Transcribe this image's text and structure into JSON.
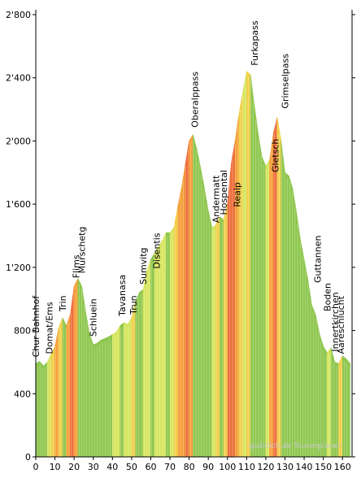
{
  "chart_data": {
    "type": "area",
    "title": "",
    "xlabel": "",
    "ylabel": "",
    "xlim": [
      0,
      165
    ],
    "ylim": [
      0,
      2800
    ],
    "x_ticks": [
      0,
      10,
      20,
      30,
      40,
      50,
      60,
      70,
      80,
      90,
      100,
      110,
      120,
      130,
      140,
      150,
      160
    ],
    "x_tick_labels": [
      "0",
      "10",
      "20",
      "30",
      "40",
      "50",
      "60",
      "70",
      "80",
      "90",
      "100",
      "110",
      "120",
      "130",
      "140",
      "150",
      "160"
    ],
    "y_ticks": [
      0,
      400,
      800,
      1200,
      1600,
      2000,
      2400,
      2800
    ],
    "y_tick_labels": [
      "0",
      "400",
      "800",
      "1'200",
      "1'600",
      "2'000",
      "2'400",
      "2'800"
    ],
    "grid": false,
    "credit": "quäldich.de Tourenplaner",
    "colors": {
      "flat": "#8fc74f",
      "mild": "#d6e660",
      "moderate": "#f1d04a",
      "steep": "#f5a03a",
      "very_steep": "#ee6e3c",
      "stripe": "#ffffff",
      "axis": "#000000"
    },
    "profile": {
      "x": [
        0,
        2,
        4,
        6,
        8,
        10,
        12,
        14,
        16,
        18,
        20,
        22,
        24,
        26,
        28,
        30,
        32,
        34,
        36,
        38,
        40,
        42,
        44,
        46,
        48,
        50,
        52,
        54,
        56,
        58,
        60,
        62,
        64,
        66,
        68,
        70,
        72,
        74,
        76,
        78,
        80,
        82,
        84,
        86,
        88,
        90,
        92,
        94,
        96,
        98,
        100,
        102,
        104,
        106,
        108,
        110,
        112,
        114,
        116,
        118,
        120,
        122,
        124,
        126,
        128,
        130,
        132,
        134,
        136,
        138,
        140,
        142,
        144,
        146,
        148,
        150,
        152,
        154,
        156,
        158,
        160,
        162,
        164
      ],
      "y": [
        590,
        605,
        575,
        600,
        650,
        700,
        820,
        880,
        830,
        900,
        1080,
        1130,
        1080,
        920,
        780,
        710,
        720,
        740,
        750,
        760,
        775,
        790,
        830,
        850,
        840,
        880,
        980,
        1040,
        1060,
        1180,
        1250,
        1290,
        1330,
        1370,
        1420,
        1420,
        1450,
        1580,
        1700,
        1850,
        2000,
        2040,
        1950,
        1830,
        1700,
        1560,
        1450,
        1470,
        1520,
        1500,
        1600,
        1860,
        2000,
        2170,
        2310,
        2440,
        2420,
        2230,
        2050,
        1900,
        1840,
        1880,
        2050,
        2150,
        2000,
        1800,
        1780,
        1700,
        1550,
        1380,
        1250,
        1120,
        960,
        900,
        780,
        700,
        660,
        690,
        600,
        590,
        640,
        620,
        590
      ],
      "grade_class": [
        "flat",
        "flat",
        "flat",
        "mild",
        "moderate",
        "steep",
        "moderate",
        "flat",
        "steep",
        "very_steep",
        "steep",
        "flat",
        "flat",
        "flat",
        "flat",
        "flat",
        "flat",
        "flat",
        "flat",
        "flat",
        "mild",
        "mild",
        "flat",
        "mild",
        "mild",
        "moderate",
        "flat",
        "flat",
        "mild",
        "mild",
        "flat",
        "mild",
        "mild",
        "mild",
        "flat",
        "mild",
        "moderate",
        "steep",
        "steep",
        "very_steep",
        "steep",
        "flat",
        "flat",
        "flat",
        "flat",
        "flat",
        "mild",
        "moderate",
        "flat",
        "moderate",
        "very_steep",
        "very_steep",
        "steep",
        "moderate",
        "mild",
        "moderate",
        "flat",
        "flat",
        "flat",
        "flat",
        "mild",
        "steep",
        "very_steep",
        "moderate",
        "flat",
        "flat",
        "flat",
        "flat",
        "flat",
        "flat",
        "flat",
        "flat",
        "flat",
        "flat",
        "flat",
        "flat",
        "mild",
        "flat",
        "flat",
        "moderate",
        "flat",
        "flat"
      ]
    },
    "annotations": [
      {
        "label": "Chur Bahnhof",
        "x": 0,
        "y": 590
      },
      {
        "label": "Domat/Ems",
        "x": 7,
        "y": 610
      },
      {
        "label": "Trin",
        "x": 14,
        "y": 880
      },
      {
        "label": "Flims",
        "x": 21,
        "y": 1090
      },
      {
        "label": "Murschetg",
        "x": 24,
        "y": 1120
      },
      {
        "label": "Schluein",
        "x": 30,
        "y": 720
      },
      {
        "label": "Tavanasa",
        "x": 45,
        "y": 850
      },
      {
        "label": "Trun",
        "x": 51,
        "y": 860
      },
      {
        "label": "Sumvitg",
        "x": 56,
        "y": 1050
      },
      {
        "label": "Disentis",
        "x": 63,
        "y": 1150
      },
      {
        "label": "Oberalppass",
        "x": 83,
        "y": 2044
      },
      {
        "label": "Andermatt",
        "x": 94,
        "y": 1440
      },
      {
        "label": "Hospental",
        "x": 98,
        "y": 1490
      },
      {
        "label": "Realp",
        "x": 105,
        "y": 1540
      },
      {
        "label": "Furkapass",
        "x": 114,
        "y": 2436
      },
      {
        "label": "Gletsch",
        "x": 125,
        "y": 1760
      },
      {
        "label": "Grimselpass",
        "x": 130,
        "y": 2164
      },
      {
        "label": "Guttannen",
        "x": 147,
        "y": 1060
      },
      {
        "label": "Boden",
        "x": 152,
        "y": 880
      },
      {
        "label": "Innertkirchen",
        "x": 156,
        "y": 625
      },
      {
        "label": "Aareschlucht",
        "x": 159,
        "y": 610
      }
    ]
  }
}
